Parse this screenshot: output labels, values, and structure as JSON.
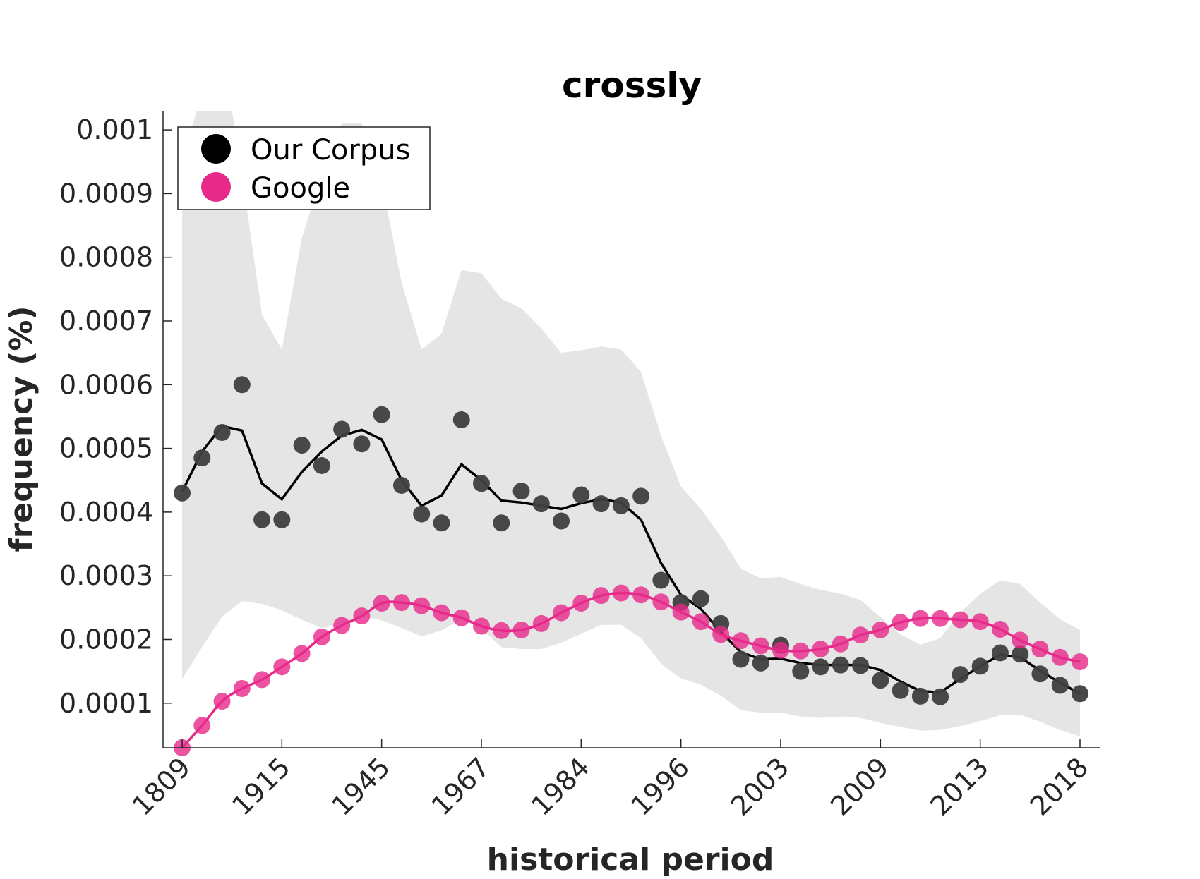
{
  "chart_data": {
    "type": "scatter",
    "title": "crossly",
    "xlabel": "historical period",
    "ylabel": "frequency (%)",
    "x_tick_labels": [
      "1809",
      "1915",
      "1945",
      "1967",
      "1984",
      "1996",
      "2003",
      "2009",
      "2013",
      "2018"
    ],
    "y_tick_labels": [
      "0.0001",
      "0.0002",
      "0.0003",
      "0.0004",
      "0.0005",
      "0.0006",
      "0.0007",
      "0.0008",
      "0.0009",
      "0.001"
    ],
    "y_ticks": [
      0.0001,
      0.0002,
      0.0003,
      0.0004,
      0.0005,
      0.0006,
      0.0007,
      0.0008,
      0.0009,
      0.001
    ],
    "ylim": [
      3e-05,
      0.00103
    ],
    "legend_position": "top-left",
    "grid": false,
    "series": [
      {
        "name": "Our Corpus",
        "color": "#3f3f3f",
        "line_color": "#000000",
        "points": [
          0.00043,
          0.000485,
          0.000525,
          0.0006,
          0.000388,
          0.000388,
          0.000505,
          0.000473,
          0.00053,
          0.000507,
          0.000553,
          0.000442,
          0.000397,
          0.000383,
          0.000545,
          0.000445,
          0.000383,
          0.000433,
          0.000413,
          0.000386,
          0.000427,
          0.000413,
          0.00041,
          0.000425,
          0.000293,
          0.000258,
          0.000264,
          0.000225,
          0.000169,
          0.000163,
          0.000191,
          0.00015,
          0.000157,
          0.00016,
          0.000159,
          0.000136,
          0.00012,
          0.000111,
          0.00011,
          0.000145,
          0.000158,
          0.000179,
          0.000177,
          0.000146,
          0.000128,
          0.000115
        ],
        "trend": [
          0.000432,
          0.000495,
          0.000535,
          0.000528,
          0.000445,
          0.00042,
          0.000463,
          0.000495,
          0.00052,
          0.000529,
          0.000514,
          0.00045,
          0.00041,
          0.000426,
          0.000475,
          0.00045,
          0.000418,
          0.000415,
          0.00041,
          0.000405,
          0.000414,
          0.00042,
          0.000415,
          0.000388,
          0.00032,
          0.00027,
          0.000248,
          0.000212,
          0.00018,
          0.000169,
          0.00017,
          0.000163,
          0.00016,
          0.00016,
          0.00016,
          0.000152,
          0.000134,
          0.000119,
          0.000117,
          0.000138,
          0.000158,
          0.000176,
          0.000172,
          0.000151,
          0.000132,
          0.000115
        ],
        "band_upper": [
          0.000138,
          0.000188,
          0.000236,
          0.00026,
          0.000256,
          0.000246,
          0.000231,
          0.000218,
          0.000224,
          0.000237,
          0.00023,
          0.000218,
          0.000205,
          0.000214,
          0.000232,
          0.000217,
          0.000188,
          0.000185,
          0.000185,
          0.000195,
          0.000209,
          0.000223,
          0.000223,
          0.000202,
          0.000162,
          0.000139,
          0.000129,
          0.000112,
          8.9e-05,
          8.5e-05,
          8.5e-05,
          7.9e-05,
          7.7e-05,
          7.9e-05,
          7.7e-05,
          6.9e-05,
          6.3e-05,
          5.7e-05,
          5.8e-05,
          6.4e-05,
          7.2e-05,
          8.1e-05,
          8.2e-05,
          7.1e-05,
          5.8e-05,
          4.8e-05
        ],
        "band_lower_note": "",
        "band_high": [
          0.00095,
          0.00106,
          0.00113,
          0.00093,
          0.00071,
          0.000655,
          0.00083,
          0.00093,
          0.00101,
          0.00101,
          0.00092,
          0.00076,
          0.000655,
          0.00068,
          0.00078,
          0.000775,
          0.000735,
          0.00072,
          0.000688,
          0.00065,
          0.000654,
          0.00066,
          0.000655,
          0.00062,
          0.00052,
          0.00044,
          0.000405,
          0.000362,
          0.000311,
          0.000296,
          0.000298,
          0.000287,
          0.000278,
          0.000272,
          0.000262,
          0.000235,
          0.000208,
          0.000192,
          0.000202,
          0.000242,
          0.000272,
          0.000293,
          0.000287,
          0.000258,
          0.000232,
          0.000215
        ]
      },
      {
        "name": "Google",
        "color": "#e7298a",
        "points": [
          3e-05,
          6.5e-05,
          0.000103,
          0.000123,
          0.000137,
          0.000157,
          0.000178,
          0.000204,
          0.000222,
          0.000237,
          0.000257,
          0.000258,
          0.000253,
          0.000242,
          0.000234,
          0.000221,
          0.000214,
          0.000215,
          0.000225,
          0.000242,
          0.000257,
          0.000269,
          0.000273,
          0.00027,
          0.000259,
          0.000243,
          0.000228,
          0.000208,
          0.000198,
          0.00019,
          0.000183,
          0.000182,
          0.000185,
          0.000193,
          0.000207,
          0.000215,
          0.000227,
          0.000233,
          0.000233,
          0.000231,
          0.000228,
          0.000216,
          0.000199,
          0.000185,
          0.000172,
          0.000165
        ]
      }
    ]
  }
}
